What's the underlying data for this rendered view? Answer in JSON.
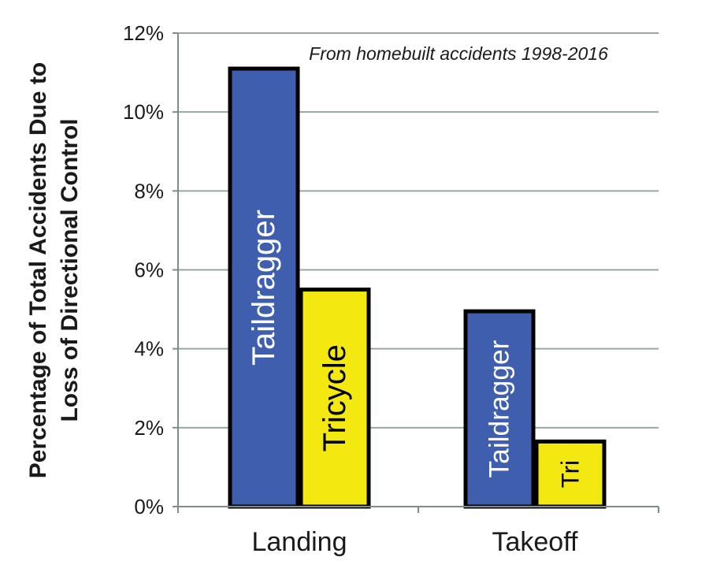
{
  "chart_data": {
    "type": "bar",
    "title": "",
    "annotation": "From homebuilt accidents 1998-2016",
    "ylabel": [
      "Percentage of Total Accidents Due to",
      "Loss of Directional Control"
    ],
    "xlabel": "",
    "categories": [
      "Landing",
      "Takeoff"
    ],
    "ylim": [
      0,
      12
    ],
    "yticks": [
      0,
      2,
      4,
      6,
      8,
      10,
      12
    ],
    "ytick_labels": [
      "0%",
      "2%",
      "4%",
      "6%",
      "8%",
      "10%",
      "12%"
    ],
    "grid": true,
    "series": [
      {
        "name": "Taildragger",
        "color": "#3f5fae",
        "text_color": "#ffffff",
        "values": [
          11.1,
          4.95
        ],
        "bar_labels": [
          "Taildragger",
          "Taildragger"
        ]
      },
      {
        "name": "Tricycle",
        "color": "#f3e80f",
        "text_color": "#000000",
        "values": [
          5.5,
          1.65
        ],
        "bar_labels": [
          "Tricycle",
          "Tri"
        ]
      }
    ]
  }
}
